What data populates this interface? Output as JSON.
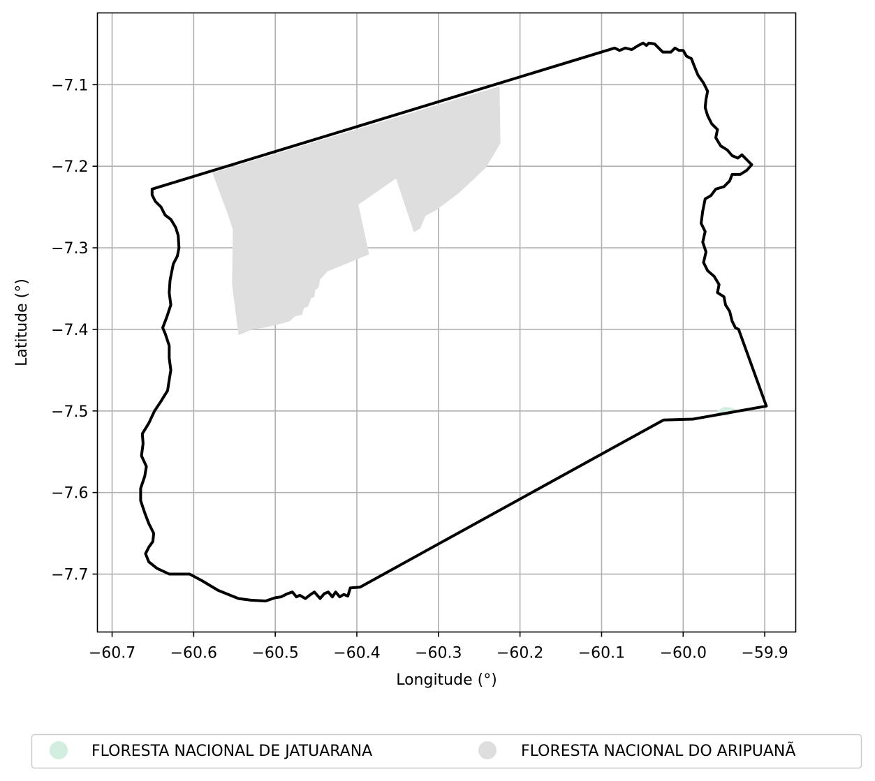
{
  "chart_data": {
    "type": "map",
    "xlabel": "Longitude (°)",
    "ylabel": "Latitude (°)",
    "xlim": [
      -60.718,
      -59.862
    ],
    "ylim": [
      -7.771,
      -7.012
    ],
    "grid": true,
    "legend_position": "bottom",
    "x_ticks": [
      {
        "value": -60.7,
        "label": "−60.7"
      },
      {
        "value": -60.6,
        "label": "−60.6"
      },
      {
        "value": -60.5,
        "label": "−60.5"
      },
      {
        "value": -60.4,
        "label": "−60.4"
      },
      {
        "value": -60.3,
        "label": "−60.3"
      },
      {
        "value": -60.2,
        "label": "−60.2"
      },
      {
        "value": -60.1,
        "label": "−60.1"
      },
      {
        "value": -60.0,
        "label": "−60.0"
      },
      {
        "value": -59.9,
        "label": "−59.9"
      }
    ],
    "y_ticks": [
      {
        "value": -7.1,
        "label": "−7.1"
      },
      {
        "value": -7.2,
        "label": "−7.2"
      },
      {
        "value": -7.3,
        "label": "−7.3"
      },
      {
        "value": -7.4,
        "label": "−7.4"
      },
      {
        "value": -7.5,
        "label": "−7.5"
      },
      {
        "value": -7.6,
        "label": "−7.6"
      },
      {
        "value": -7.7,
        "label": "−7.7"
      }
    ],
    "legend": [
      {
        "label": "FLORESTA NACIONAL DE JATUARANA",
        "color": "#d2eedf"
      },
      {
        "label": "FLORESTA NACIONAL DO ARIPUANÃ",
        "color": "#dedede"
      }
    ],
    "layers": [
      {
        "name": "FLORESTA NACIONAL DO ARIPUANÃ",
        "color": "#dedede",
        "type": "polygon",
        "coords": [
          [
            -60.577,
            -7.208
          ],
          [
            -60.225,
            -7.102
          ],
          [
            -60.224,
            -7.172
          ],
          [
            -60.242,
            -7.202
          ],
          [
            -60.275,
            -7.233
          ],
          [
            -60.303,
            -7.254
          ],
          [
            -60.316,
            -7.261
          ],
          [
            -60.322,
            -7.276
          ],
          [
            -60.33,
            -7.281
          ],
          [
            -60.352,
            -7.215
          ],
          [
            -60.398,
            -7.247
          ],
          [
            -60.385,
            -7.308
          ],
          [
            -60.436,
            -7.329
          ],
          [
            -60.445,
            -7.339
          ],
          [
            -60.447,
            -7.349
          ],
          [
            -60.451,
            -7.352
          ],
          [
            -60.452,
            -7.36
          ],
          [
            -60.456,
            -7.362
          ],
          [
            -60.46,
            -7.372
          ],
          [
            -60.465,
            -7.374
          ],
          [
            -60.467,
            -7.382
          ],
          [
            -60.476,
            -7.384
          ],
          [
            -60.482,
            -7.39
          ],
          [
            -60.493,
            -7.393
          ],
          [
            -60.514,
            -7.398
          ],
          [
            -60.528,
            -7.4
          ],
          [
            -60.545,
            -7.407
          ],
          [
            -60.553,
            -7.345
          ],
          [
            -60.552,
            -7.278
          ],
          [
            -60.557,
            -7.262
          ]
        ]
      },
      {
        "name": "FLORESTA NACIONAL DE JATUARANA",
        "color": "#d2eedf",
        "type": "polygon",
        "coords": [
          [
            -59.958,
            -7.5
          ],
          [
            -59.95,
            -7.495
          ],
          [
            -59.94,
            -7.496
          ],
          [
            -59.932,
            -7.5
          ],
          [
            -59.945,
            -7.506
          ],
          [
            -59.958,
            -7.505
          ]
        ]
      },
      {
        "name": "boundary",
        "color": "#000000",
        "type": "outline",
        "coords": [
          [
            -60.651,
            -7.228
          ],
          [
            -60.084,
            -7.055
          ],
          [
            -60.078,
            -7.058
          ],
          [
            -60.071,
            -7.055
          ],
          [
            -60.063,
            -7.057
          ],
          [
            -60.055,
            -7.052
          ],
          [
            -60.049,
            -7.049
          ],
          [
            -60.045,
            -7.052
          ],
          [
            -60.042,
            -7.049
          ],
          [
            -60.035,
            -7.05
          ],
          [
            -60.03,
            -7.055
          ],
          [
            -60.025,
            -7.06
          ],
          [
            -60.015,
            -7.06
          ],
          [
            -60.01,
            -7.055
          ],
          [
            -60.005,
            -7.058
          ],
          [
            -60.0,
            -7.058
          ],
          [
            -59.996,
            -7.065
          ],
          [
            -59.99,
            -7.068
          ],
          [
            -59.986,
            -7.078
          ],
          [
            -59.982,
            -7.088
          ],
          [
            -59.975,
            -7.098
          ],
          [
            -59.97,
            -7.108
          ],
          [
            -59.972,
            -7.118
          ],
          [
            -59.973,
            -7.128
          ],
          [
            -59.97,
            -7.138
          ],
          [
            -59.965,
            -7.148
          ],
          [
            -59.958,
            -7.155
          ],
          [
            -59.96,
            -7.165
          ],
          [
            -59.954,
            -7.175
          ],
          [
            -59.946,
            -7.18
          ],
          [
            -59.94,
            -7.187
          ],
          [
            -59.933,
            -7.19
          ],
          [
            -59.928,
            -7.186
          ],
          [
            -59.922,
            -7.192
          ],
          [
            -59.916,
            -7.198
          ],
          [
            -59.922,
            -7.205
          ],
          [
            -59.93,
            -7.21
          ],
          [
            -59.94,
            -7.21
          ],
          [
            -59.943,
            -7.218
          ],
          [
            -59.95,
            -7.225
          ],
          [
            -59.96,
            -7.228
          ],
          [
            -59.966,
            -7.236
          ],
          [
            -59.973,
            -7.24
          ],
          [
            -59.976,
            -7.255
          ],
          [
            -59.978,
            -7.27
          ],
          [
            -59.973,
            -7.28
          ],
          [
            -59.976,
            -7.293
          ],
          [
            -59.972,
            -7.305
          ],
          [
            -59.975,
            -7.318
          ],
          [
            -59.97,
            -7.328
          ],
          [
            -59.962,
            -7.335
          ],
          [
            -59.956,
            -7.345
          ],
          [
            -59.958,
            -7.355
          ],
          [
            -59.95,
            -7.36
          ],
          [
            -59.948,
            -7.37
          ],
          [
            -59.943,
            -7.378
          ],
          [
            -59.94,
            -7.39
          ],
          [
            -59.936,
            -7.398
          ],
          [
            -59.932,
            -7.4
          ],
          [
            -59.898,
            -7.494
          ],
          [
            -59.988,
            -7.51
          ],
          [
            -60.024,
            -7.511
          ],
          [
            -60.396,
            -7.716
          ],
          [
            -60.408,
            -7.717
          ],
          [
            -60.411,
            -7.727
          ],
          [
            -60.416,
            -7.725
          ],
          [
            -60.421,
            -7.728
          ],
          [
            -60.426,
            -7.722
          ],
          [
            -60.43,
            -7.728
          ],
          [
            -60.435,
            -7.722
          ],
          [
            -60.44,
            -7.724
          ],
          [
            -60.445,
            -7.73
          ],
          [
            -60.452,
            -7.722
          ],
          [
            -60.458,
            -7.726
          ],
          [
            -60.463,
            -7.73
          ],
          [
            -60.47,
            -7.726
          ],
          [
            -60.474,
            -7.728
          ],
          [
            -60.479,
            -7.722
          ],
          [
            -60.485,
            -7.724
          ],
          [
            -60.493,
            -7.728
          ],
          [
            -60.5,
            -7.729
          ],
          [
            -60.512,
            -7.733
          ],
          [
            -60.53,
            -7.732
          ],
          [
            -60.545,
            -7.73
          ],
          [
            -60.57,
            -7.72
          ],
          [
            -60.59,
            -7.708
          ],
          [
            -60.605,
            -7.7
          ],
          [
            -60.618,
            -7.7
          ],
          [
            -60.63,
            -7.7
          ],
          [
            -60.645,
            -7.693
          ],
          [
            -60.655,
            -7.685
          ],
          [
            -60.659,
            -7.675
          ],
          [
            -60.655,
            -7.667
          ],
          [
            -60.65,
            -7.66
          ],
          [
            -60.649,
            -7.65
          ],
          [
            -60.655,
            -7.638
          ],
          [
            -60.66,
            -7.625
          ],
          [
            -60.665,
            -7.61
          ],
          [
            -60.665,
            -7.595
          ],
          [
            -60.66,
            -7.58
          ],
          [
            -60.658,
            -7.568
          ],
          [
            -60.664,
            -7.555
          ],
          [
            -60.662,
            -7.54
          ],
          [
            -60.663,
            -7.528
          ],
          [
            -60.655,
            -7.515
          ],
          [
            -60.648,
            -7.5
          ],
          [
            -60.64,
            -7.488
          ],
          [
            -60.632,
            -7.475
          ],
          [
            -60.63,
            -7.462
          ],
          [
            -60.628,
            -7.45
          ],
          [
            -60.63,
            -7.435
          ],
          [
            -60.63,
            -7.42
          ],
          [
            -60.635,
            -7.405
          ],
          [
            -60.638,
            -7.398
          ],
          [
            -60.633,
            -7.385
          ],
          [
            -60.628,
            -7.37
          ],
          [
            -60.63,
            -7.355
          ],
          [
            -60.629,
            -7.34
          ],
          [
            -60.625,
            -7.32
          ],
          [
            -60.62,
            -7.31
          ],
          [
            -60.618,
            -7.3
          ],
          [
            -60.619,
            -7.285
          ],
          [
            -60.622,
            -7.275
          ],
          [
            -60.628,
            -7.265
          ],
          [
            -60.635,
            -7.26
          ],
          [
            -60.64,
            -7.25
          ],
          [
            -60.647,
            -7.243
          ],
          [
            -60.651,
            -7.235
          ],
          [
            -60.651,
            -7.228
          ]
        ]
      }
    ]
  }
}
